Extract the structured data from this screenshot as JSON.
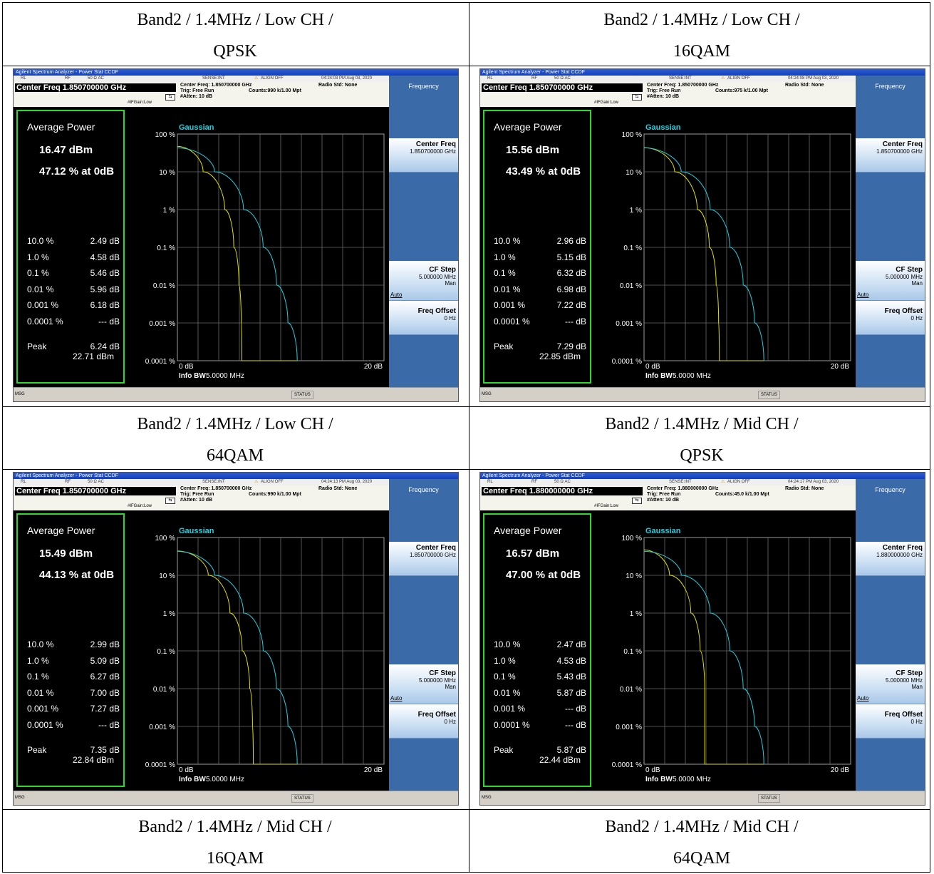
{
  "captions": [
    [
      "Band2 / 1.4MHz / Low CH /",
      "QPSK"
    ],
    [
      "Band2 / 1.4MHz / Low CH /",
      "16QAM"
    ],
    [
      "Band2 / 1.4MHz / Low CH /",
      "64QAM"
    ],
    [
      "Band2 / 1.4MHz / Mid CH /",
      "QPSK"
    ],
    [
      "Band2 / 1.4MHz / Mid CH /",
      "16QAM"
    ],
    [
      "Band2 / 1.4MHz / Mid CH /",
      "64QAM"
    ]
  ],
  "common": {
    "window_title": "Agilent Spectrum Analyzer - Power Stat CCDF",
    "status_rl": "RL",
    "status_rf": "RF",
    "status_ohm": "50 Ω  AC",
    "status_sense": "SENSE:INT",
    "status_align": "ALIGN OFF",
    "trig": "Trig: Free Run",
    "atten": "#Atten: 10 dB",
    "radio_std": "Radio Std: None",
    "ifgain": "#IFGain:Low",
    "avg_power_label": "Average Power",
    "peak_label": "Peak",
    "gaussian_label": "Gaussian",
    "x_start": "0 dB",
    "x_end": "20 dB",
    "info_bw_label": "Info BW",
    "info_bw_value": "5.0000 MHz",
    "y_ticks": [
      "100 %",
      "10 %",
      "1 %",
      "0.1 %",
      "0.01 %",
      "0.001 %",
      "0.0001 %"
    ],
    "row_labels": [
      "10.0 %",
      "1.0 %",
      "0.1 %",
      "0.01 %",
      "0.001 %",
      "0.0001 %"
    ],
    "softkey_menu": "Frequency",
    "sk_center_freq": "Center Freq",
    "sk_cf_step": "CF Step",
    "sk_cf_step_value": "5.000000 MHz",
    "sk_auto": "Auto",
    "sk_man": "Man",
    "sk_freq_offset": "Freq Offset",
    "sk_freq_offset_value": "0 Hz",
    "msg": "MSG",
    "status": "STATUS",
    "colors": {
      "measured": "#e0e000",
      "gaussian": "#20d0e0",
      "green_box": "#2dd82d"
    }
  },
  "screens": [
    {
      "timestamp": "04:24:03 PM Aug 03, 2020",
      "center_freq_box": "Center Freq 1.850700000 GHz",
      "center_freq_info": "Center Freq: 1.850700000 GHz",
      "counts": "Counts:990 k/1.00 Mpt",
      "sk_center_value": "1.850700000 GHz",
      "avg_power": "16.47 dBm",
      "pct_at_0db": "47.12 % at 0dB",
      "row_values": [
        "2.49 dB",
        "4.58 dB",
        "5.46 dB",
        "5.96 dB",
        "6.18 dB",
        "--- dB"
      ],
      "peak_db": "6.24 dB",
      "peak_dbm": "22.71 dBm"
    },
    {
      "timestamp": "04:24:08 PM Aug 03, 2020",
      "center_freq_box": "Center Freq 1.850700000 GHz",
      "center_freq_info": "Center Freq: 1.850700000 GHz",
      "counts": "Counts:975 k/1.00 Mpt",
      "sk_center_value": "1.850700000 GHz",
      "avg_power": "15.56 dBm",
      "pct_at_0db": "43.49 % at 0dB",
      "row_values": [
        "2.96 dB",
        "5.15 dB",
        "6.32 dB",
        "6.98 dB",
        "7.22 dB",
        "--- dB"
      ],
      "peak_db": "7.29 dB",
      "peak_dbm": "22.85 dBm"
    },
    {
      "timestamp": "04:24:13 PM Aug 03, 2020",
      "center_freq_box": "Center Freq 1.850700000 GHz",
      "center_freq_info": "Center Freq: 1.850700000 GHz",
      "counts": "Counts:990 k/1.00 Mpt",
      "sk_center_value": "1.850700000 GHz",
      "avg_power": "15.49 dBm",
      "pct_at_0db": "44.13 % at 0dB",
      "row_values": [
        "2.99 dB",
        "5.09 dB",
        "6.27 dB",
        "7.00 dB",
        "7.27 dB",
        "--- dB"
      ],
      "peak_db": "7.35 dB",
      "peak_dbm": "22.84 dBm"
    },
    {
      "timestamp": "04:24:17 PM Aug 03, 2020",
      "center_freq_box": "Center Freq 1.880000000 GHz",
      "center_freq_info": "Center Freq: 1.880000000 GHz",
      "counts": "Counts:45.0 k/1.00 Mpt",
      "sk_center_value": "1.880000000 GHz",
      "avg_power": "16.57 dBm",
      "pct_at_0db": "47.00 % at 0dB",
      "row_values": [
        "2.47 dB",
        "4.53 dB",
        "5.43 dB",
        "5.87 dB",
        "--- dB",
        "--- dB"
      ],
      "peak_db": "5.87 dB",
      "peak_dbm": "22.44 dBm"
    }
  ],
  "chart_data": [
    {
      "type": "line",
      "title": "Gaussian",
      "xlabel": "",
      "ylabel": "",
      "xlim": [
        0,
        20
      ],
      "ylim_percent": [
        0.0001,
        100
      ],
      "y_scale": "log",
      "series": [
        {
          "x": [
            0,
            2.49,
            4.58,
            5.46,
            5.96,
            6.18,
            6.24
          ],
          "y": [
            47.12,
            10,
            1,
            0.1,
            0.01,
            0.001,
            0.0001
          ]
        },
        {
          "name": "Gaussian",
          "x": [
            0,
            3.6,
            6.4,
            8.3,
            9.6,
            10.7,
            11.6
          ],
          "y": [
            43,
            10,
            1,
            0.1,
            0.01,
            0.001,
            0.0001
          ]
        }
      ]
    },
    {
      "type": "line",
      "title": "Gaussian",
      "xlabel": "",
      "ylabel": "",
      "xlim": [
        0,
        20
      ],
      "ylim_percent": [
        0.0001,
        100
      ],
      "y_scale": "log",
      "series": [
        {
          "x": [
            0,
            2.96,
            5.15,
            6.32,
            6.98,
            7.22,
            7.29
          ],
          "y": [
            43.49,
            10,
            1,
            0.1,
            0.01,
            0.001,
            0.0001
          ]
        },
        {
          "name": "Gaussian",
          "x": [
            0,
            3.6,
            6.4,
            8.3,
            9.6,
            10.7,
            11.6
          ],
          "y": [
            43,
            10,
            1,
            0.1,
            0.01,
            0.001,
            0.0001
          ]
        }
      ]
    },
    {
      "type": "line",
      "title": "Gaussian",
      "xlabel": "",
      "ylabel": "",
      "xlim": [
        0,
        20
      ],
      "ylim_percent": [
        0.0001,
        100
      ],
      "y_scale": "log",
      "series": [
        {
          "x": [
            0,
            2.99,
            5.09,
            6.27,
            7.0,
            7.27,
            7.35
          ],
          "y": [
            44.13,
            10,
            1,
            0.1,
            0.01,
            0.001,
            0.0001
          ]
        },
        {
          "name": "Gaussian",
          "x": [
            0,
            3.6,
            6.4,
            8.3,
            9.6,
            10.7,
            11.6
          ],
          "y": [
            43,
            10,
            1,
            0.1,
            0.01,
            0.001,
            0.0001
          ]
        }
      ]
    },
    {
      "type": "line",
      "title": "Gaussian",
      "xlabel": "",
      "ylabel": "",
      "xlim": [
        0,
        20
      ],
      "ylim_percent": [
        0.0001,
        100
      ],
      "y_scale": "log",
      "series": [
        {
          "x": [
            0,
            2.47,
            4.53,
            5.43,
            5.87,
            5.87,
            5.87
          ],
          "y": [
            47.0,
            10,
            1,
            0.1,
            0.01,
            0.001,
            0.0001
          ]
        },
        {
          "name": "Gaussian",
          "x": [
            0,
            3.6,
            6.4,
            8.3,
            9.6,
            10.7,
            11.6
          ],
          "y": [
            43,
            10,
            1,
            0.1,
            0.01,
            0.001,
            0.0001
          ]
        }
      ]
    }
  ]
}
